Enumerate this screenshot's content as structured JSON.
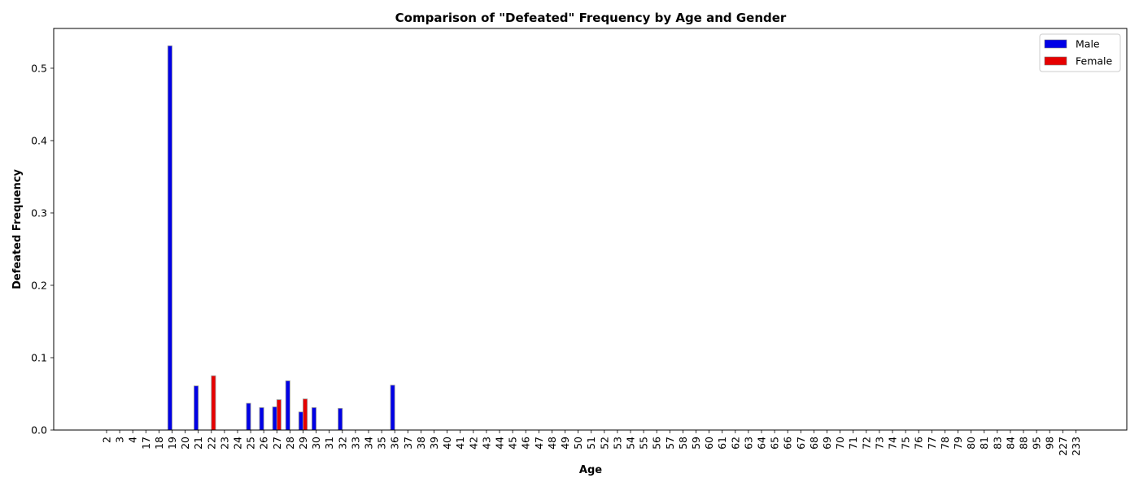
{
  "chart_data": {
    "type": "bar",
    "title": "Comparison of \"Defeated\" Frequency by Age and Gender",
    "xlabel": "Age",
    "ylabel": "Defeated Frequency",
    "ylim": [
      0,
      0.555
    ],
    "yticks": [
      0.0,
      0.1,
      0.2,
      0.3,
      0.4,
      0.5
    ],
    "ytick_labels": [
      "0.0",
      "0.1",
      "0.2",
      "0.3",
      "0.4",
      "0.5"
    ],
    "grid": false,
    "legend_position": "top-right",
    "categories": [
      "2",
      "3",
      "4",
      "17",
      "18",
      "19",
      "20",
      "21",
      "22",
      "23",
      "24",
      "25",
      "26",
      "27",
      "28",
      "29",
      "30",
      "31",
      "32",
      "33",
      "34",
      "35",
      "36",
      "37",
      "38",
      "39",
      "40",
      "41",
      "42",
      "43",
      "44",
      "45",
      "46",
      "47",
      "48",
      "49",
      "50",
      "51",
      "52",
      "53",
      "54",
      "55",
      "56",
      "57",
      "58",
      "59",
      "60",
      "61",
      "62",
      "63",
      "64",
      "65",
      "66",
      "67",
      "68",
      "69",
      "70",
      "71",
      "72",
      "73",
      "74",
      "75",
      "76",
      "77",
      "78",
      "79",
      "80",
      "81",
      "83",
      "84",
      "88",
      "95",
      "98",
      "227",
      "233"
    ],
    "series": [
      {
        "name": "Male",
        "color": "#0000e6",
        "values": [
          0,
          0,
          0,
          0,
          0,
          0.531,
          0,
          0.061,
          0,
          0,
          0,
          0.037,
          0.031,
          0.032,
          0.068,
          0.025,
          0.031,
          0,
          0.03,
          0,
          0,
          0,
          0.062,
          0,
          0,
          0,
          0,
          0,
          0,
          0,
          0,
          0,
          0,
          0,
          0,
          0,
          0,
          0,
          0,
          0,
          0,
          0,
          0,
          0,
          0,
          0,
          0,
          0,
          0,
          0,
          0,
          0,
          0,
          0,
          0,
          0,
          0,
          0,
          0,
          0,
          0,
          0,
          0,
          0,
          0,
          0,
          0,
          0,
          0,
          0,
          0,
          0,
          0,
          0,
          0
        ]
      },
      {
        "name": "Female",
        "color": "#e60000",
        "values": [
          0,
          0,
          0,
          0,
          0,
          0,
          0,
          0,
          0.075,
          0,
          0,
          0,
          0,
          0.042,
          0,
          0.043,
          0,
          0,
          0,
          0,
          0,
          0,
          0,
          0,
          0,
          0,
          0,
          0,
          0,
          0,
          0,
          0,
          0,
          0,
          0,
          0,
          0,
          0,
          0,
          0,
          0,
          0,
          0,
          0,
          0,
          0,
          0,
          0,
          0,
          0,
          0,
          0,
          0,
          0,
          0,
          0,
          0,
          0,
          0,
          0,
          0,
          0,
          0,
          0,
          0,
          0,
          0,
          0,
          0,
          0,
          0,
          0,
          0,
          0,
          0
        ]
      }
    ]
  }
}
